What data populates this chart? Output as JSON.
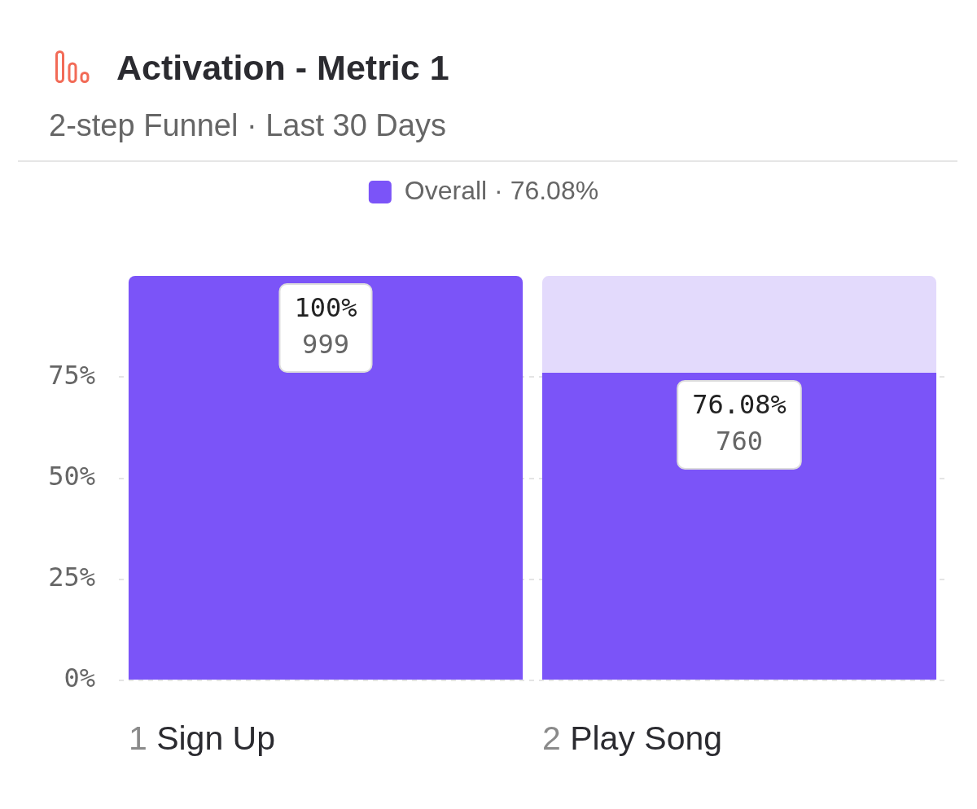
{
  "chart_data": {
    "type": "bar",
    "title": "Activation - Metric 1",
    "subtitle": "2-step Funnel · Last 30 Days",
    "categories": [
      "1 Sign Up",
      "2 Play Song"
    ],
    "series": [
      {
        "name": "Overall · 76.08%",
        "color": "#7b54f8",
        "values": [
          100,
          76.08
        ],
        "value_labels": [
          "100%\n999",
          "76.08%\n760"
        ]
      },
      {
        "color": "#e3dafc",
        "values": [
          null,
          23.9
        ]
      }
    ],
    "stacked": true,
    "ylim": [
      0,
      100
    ],
    "yticks": [
      {
        "value": 0,
        "label": "0%"
      },
      {
        "value": 25,
        "label": "25%"
      },
      {
        "value": 50,
        "label": "50%"
      },
      {
        "value": 75,
        "label": "75%"
      }
    ],
    "grid": "y",
    "legend": "top"
  }
}
